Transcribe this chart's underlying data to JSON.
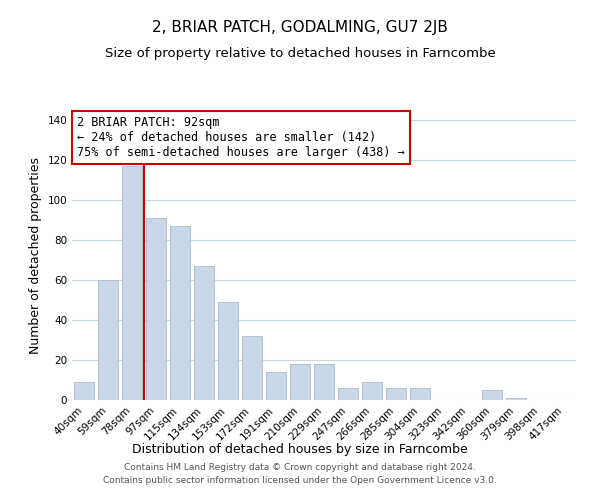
{
  "title": "2, BRIAR PATCH, GODALMING, GU7 2JB",
  "subtitle": "Size of property relative to detached houses in Farncombe",
  "xlabel": "Distribution of detached houses by size in Farncombe",
  "ylabel": "Number of detached properties",
  "footer_line1": "Contains HM Land Registry data © Crown copyright and database right 2024.",
  "footer_line2": "Contains public sector information licensed under the Open Government Licence v3.0.",
  "bar_labels": [
    "40sqm",
    "59sqm",
    "78sqm",
    "97sqm",
    "115sqm",
    "134sqm",
    "153sqm",
    "172sqm",
    "191sqm",
    "210sqm",
    "229sqm",
    "247sqm",
    "266sqm",
    "285sqm",
    "304sqm",
    "323sqm",
    "342sqm",
    "360sqm",
    "379sqm",
    "398sqm",
    "417sqm"
  ],
  "bar_values": [
    9,
    60,
    117,
    91,
    87,
    67,
    49,
    32,
    14,
    18,
    18,
    6,
    9,
    6,
    6,
    0,
    0,
    5,
    1,
    0,
    0
  ],
  "bar_color": "#c8d8e8",
  "bar_edge_color": "#a8bfd0",
  "highlight_index": 2,
  "highlight_line_color": "#cc0000",
  "annotation_line1": "2 BRIAR PATCH: 92sqm",
  "annotation_line2": "← 24% of detached houses are smaller (142)",
  "annotation_line3": "75% of semi-detached houses are larger (438) →",
  "annotation_box_color": "#ffffff",
  "annotation_box_edge": "#cc0000",
  "ylim": [
    0,
    145
  ],
  "yticks": [
    0,
    20,
    40,
    60,
    80,
    100,
    120,
    140
  ],
  "background_color": "#ffffff",
  "grid_color": "#c8d8e0",
  "title_fontsize": 11,
  "subtitle_fontsize": 9.5,
  "axis_label_fontsize": 9,
  "tick_fontsize": 7.5,
  "annotation_fontsize": 8.5,
  "ylabel_fontsize": 9
}
